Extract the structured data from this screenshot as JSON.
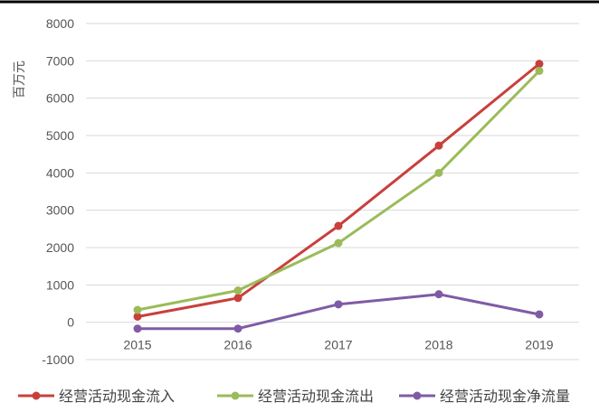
{
  "chart_data": {
    "type": "line",
    "title": "",
    "xlabel": "",
    "ylabel": "百万元",
    "x": [
      "2015",
      "2016",
      "2017",
      "2018",
      "2019"
    ],
    "ylim": [
      -1000,
      8000
    ],
    "yticks": [
      "8000",
      "7000",
      "6000",
      "5000",
      "4000",
      "3000",
      "2000",
      "1000",
      "0",
      "-1000"
    ],
    "grid": true,
    "legend_position": "bottom",
    "series": [
      {
        "name": "经营活动现金流入",
        "color": "#c8403c",
        "values": [
          150,
          650,
          2580,
          4730,
          6920
        ]
      },
      {
        "name": "经营活动现金流出",
        "color": "#9bbb59",
        "values": [
          330,
          850,
          2120,
          4000,
          6730
        ]
      },
      {
        "name": "经营活动现金净流量",
        "color": "#7f5ba6",
        "values": [
          -170,
          -170,
          480,
          750,
          210
        ]
      }
    ]
  }
}
